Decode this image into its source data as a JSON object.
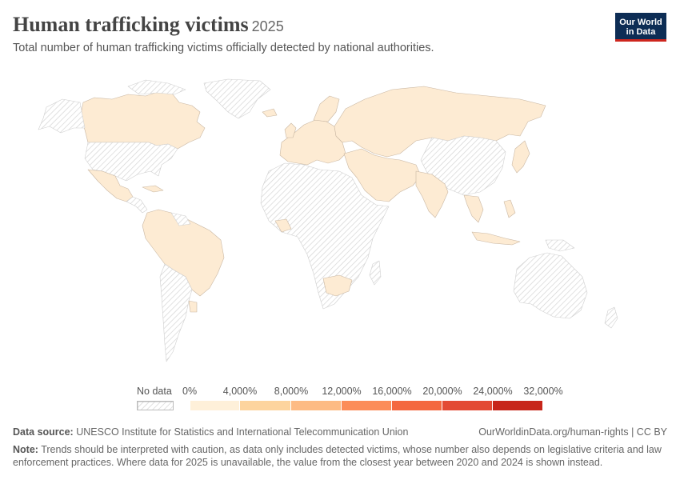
{
  "header": {
    "title": "Human trafficking victims",
    "year": "2025",
    "subtitle": "Total number of human trafficking victims officially detected by national authorities."
  },
  "logo": {
    "line1": "Our World",
    "line2": "in Data"
  },
  "colors": {
    "detected": "#fdebd3",
    "no_data_stroke": "#cfcfcf",
    "border": "#c9b7a3",
    "brand_navy": "#0d2d55",
    "brand_red": "#ce261e"
  },
  "legend": {
    "no_data_label": "No data",
    "bins": [
      {
        "label": "0%",
        "color": "#fef0d9"
      },
      {
        "label": "4,000%",
        "color": "#fdd49e"
      },
      {
        "label": "8,000%",
        "color": "#fdbb84"
      },
      {
        "label": "12,000%",
        "color": "#fc8d59"
      },
      {
        "label": "16,000%",
        "color": "#f4683f"
      },
      {
        "label": "20,000%",
        "color": "#e34a33"
      },
      {
        "label": "24,000%",
        "color": "#c7261a"
      },
      {
        "label": "32,000%",
        "color": "#a30d0b"
      }
    ]
  },
  "map": {
    "regions_with_data": [
      "Canada",
      "Mexico",
      "Colombia",
      "Venezuela",
      "Ecuador",
      "Peru",
      "Brazil",
      "Paraguay",
      "Uruguay",
      "Europe",
      "Russia",
      "Kazakhstan",
      "Turkey",
      "Iran",
      "Saudi Arabia",
      "India",
      "Japan",
      "South Korea",
      "Philippines",
      "Indonesia",
      "Thailand",
      "Nigeria",
      "Zimbabwe",
      "South Africa",
      "Egypt",
      "Morocco"
    ],
    "regions_no_data": [
      "United States",
      "Greenland",
      "Africa (most)",
      "China",
      "Mongolia",
      "Australia",
      "Argentina",
      "Chile",
      "Bolivia"
    ]
  },
  "footer": {
    "source_label": "Data source:",
    "source_text": "UNESCO Institute for Statistics and International Telecommunication Union",
    "url": "OurWorldinData.org/human-rights | CC BY",
    "note_label": "Note:",
    "note_text": "Trends should be interpreted with caution, as data only includes detected victims, whose number also depends on legislative criteria and law enforcement practices. Where data for 2025 is unavailable, the value from the closest year between 2020 and 2024 is shown instead."
  }
}
